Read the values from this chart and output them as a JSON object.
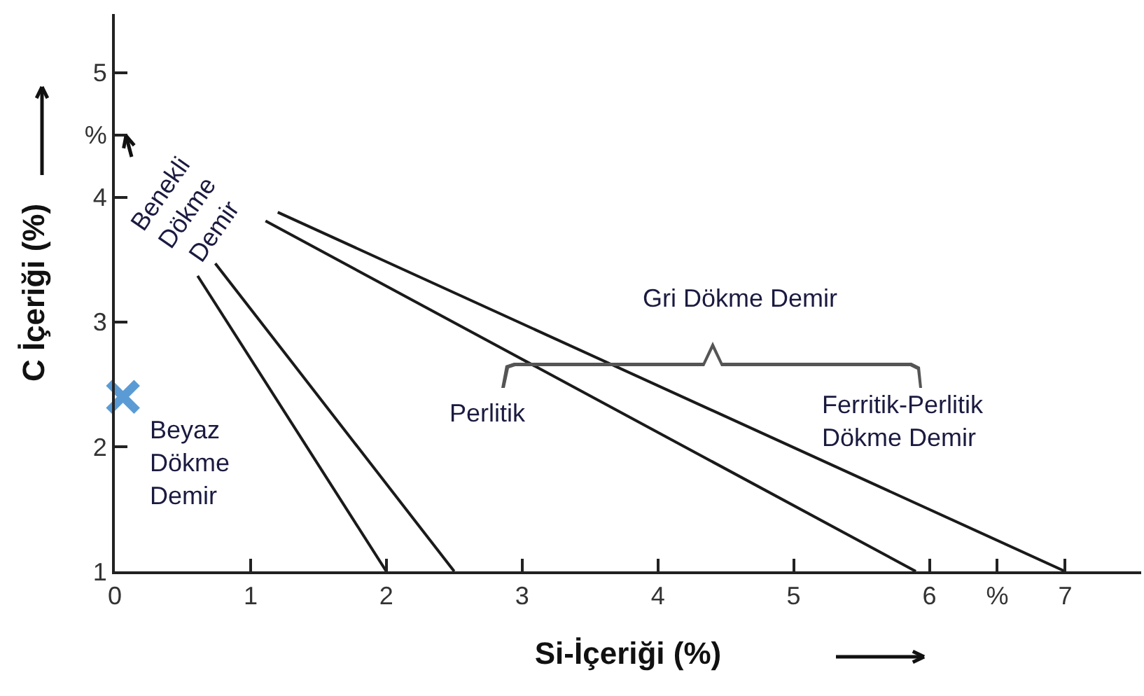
{
  "chart_data": {
    "type": "line",
    "xlabel": "Si-İçeriği (%)",
    "ylabel": "C İçeriği (%)",
    "xlim": [
      0,
      7.56
    ],
    "ylim": [
      1,
      5.47
    ],
    "xticks": [
      0,
      1,
      2,
      3,
      4,
      5,
      6,
      {
        "value": 6.5,
        "label": "%"
      },
      7
    ],
    "yticks": [
      1,
      2,
      3,
      4,
      {
        "value": 4.5,
        "label": "%"
      },
      5
    ],
    "grid": false,
    "marker": "none",
    "line_style": "solid",
    "series": [
      {
        "color": "#1a1a1a",
        "x": [
          0.61,
          2.0
        ],
        "values": [
          3.37,
          1
        ]
      },
      {
        "color": "#1a1a1a",
        "x": [
          0.74,
          2.5
        ],
        "values": [
          3.47,
          1
        ]
      },
      {
        "color": "#1a1a1a",
        "x": [
          1.11,
          5.9
        ],
        "values": [
          3.81,
          1
        ]
      },
      {
        "color": "#1a1a1a",
        "x": [
          1.2,
          7.0
        ],
        "values": [
          3.88,
          1
        ]
      },
      {
        "type": "scatter",
        "marker": "cross",
        "color": "#5b9bd5",
        "x": [
          0.06
        ],
        "values": [
          2.4
        ]
      }
    ],
    "annotations": [
      "Benekli\nDökme\nDemir",
      "Beyaz\nDökme\nDemir",
      "Perlitik",
      "Ferritik-Perlitik\nDökme Demir",
      "Gri Dökme Demir"
    ]
  }
}
